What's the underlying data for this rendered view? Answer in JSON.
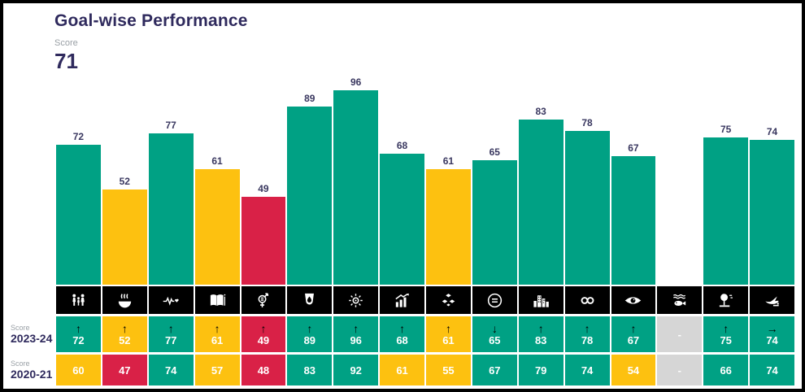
{
  "header": {
    "title": "Goal-wise Performance",
    "score_label": "Score",
    "score_value": "71"
  },
  "row_labels": {
    "score_2023": {
      "small": "Score",
      "year": "2023-24"
    },
    "score_2020": {
      "small": "Score",
      "year": "2020-21"
    }
  },
  "colors": {
    "green": "#00a184",
    "yellow": "#fdc110",
    "red": "#d92147",
    "gray": "#d6d6d6",
    "title_text": "#2f2a5d",
    "bar_label_text": "#3a3860",
    "muted_text": "#9aa0a6",
    "icon_bg": "#000000"
  },
  "thresholds": {
    "green_min": 65,
    "yellow_min": 50
  },
  "trend_glyphs": {
    "up": "↑",
    "down": "↓",
    "same": "→",
    "none": "-"
  },
  "missing_placeholder": "-",
  "goals": [
    {
      "icon": "family-icon",
      "score_2023": 72,
      "trend": "up",
      "score_2020": 60
    },
    {
      "icon": "steaming-bowl-icon",
      "score_2023": 52,
      "trend": "up",
      "score_2020": 47
    },
    {
      "icon": "heartbeat-icon",
      "score_2023": 77,
      "trend": "up",
      "score_2020": 74
    },
    {
      "icon": "open-book-icon",
      "score_2023": 61,
      "trend": "up",
      "score_2020": 57
    },
    {
      "icon": "gender-symbol-icon",
      "score_2023": 49,
      "trend": "up",
      "score_2020": 48
    },
    {
      "icon": "water-drop-icon",
      "score_2023": 89,
      "trend": "up",
      "score_2020": 83
    },
    {
      "icon": "sun-icon",
      "score_2023": 96,
      "trend": "up",
      "score_2020": 92
    },
    {
      "icon": "growth-chart-icon",
      "score_2023": 68,
      "trend": "up",
      "score_2020": 61
    },
    {
      "icon": "cubes-icon",
      "score_2023": 61,
      "trend": "up",
      "score_2020": 55
    },
    {
      "icon": "equals-sign-icon",
      "score_2023": 65,
      "trend": "down",
      "score_2020": 67
    },
    {
      "icon": "city-buildings-icon",
      "score_2023": 83,
      "trend": "up",
      "score_2020": 79
    },
    {
      "icon": "infinity-icon",
      "score_2023": 78,
      "trend": "up",
      "score_2020": 74
    },
    {
      "icon": "eye-icon",
      "score_2023": 67,
      "trend": "up",
      "score_2020": 54
    },
    {
      "icon": "fish-icon",
      "score_2023": null,
      "trend": "none",
      "score_2020": null
    },
    {
      "icon": "tree-icon",
      "score_2023": 75,
      "trend": "up",
      "score_2020": 66
    },
    {
      "icon": "dove-icon",
      "score_2023": 74,
      "trend": "same",
      "score_2020": 74
    }
  ],
  "chart_data": {
    "type": "bar",
    "title": "Goal-wise Performance",
    "subtitle_metric": {
      "label": "Score",
      "value": 71
    },
    "categories": [
      "family",
      "steaming-bowl",
      "heartbeat",
      "open-book",
      "gender-symbol",
      "water-drop",
      "sun",
      "growth-chart",
      "cubes",
      "equals-sign",
      "city-buildings",
      "infinity",
      "eye",
      "fish",
      "tree",
      "dove"
    ],
    "series": [
      {
        "name": "Score 2023-24",
        "values": [
          72,
          52,
          77,
          61,
          49,
          89,
          96,
          68,
          61,
          65,
          83,
          78,
          67,
          null,
          75,
          74
        ]
      },
      {
        "name": "Score 2020-21",
        "values": [
          60,
          47,
          74,
          57,
          48,
          83,
          92,
          61,
          55,
          67,
          79,
          74,
          54,
          null,
          66,
          74
        ]
      }
    ],
    "bar_series_shown": "Score 2023-24",
    "trends_2023_vs_2020": [
      "up",
      "up",
      "up",
      "up",
      "up",
      "up",
      "up",
      "up",
      "up",
      "down",
      "up",
      "up",
      "up",
      "none",
      "up",
      "same"
    ],
    "color_rule": ">=65 green, 50-64 yellow, <50 red, missing gray",
    "ylim": [
      10,
      100
    ],
    "grid": false,
    "legend": "none",
    "value_labels": "above bars"
  }
}
